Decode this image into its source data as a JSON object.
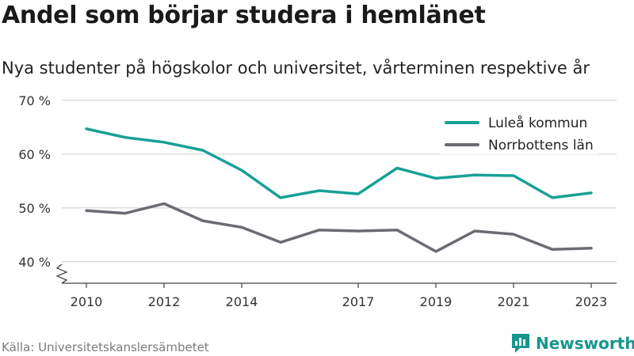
{
  "title": "Andel som börjar studera i hemlänet",
  "subtitle": "Nya studenter på högskolor och universitet, vårterminen respektive år",
  "source": "Källa: Universitetskanslersämbetet",
  "brand": {
    "name": "Newsworthy",
    "icon": "newsworthy-logo-icon",
    "color": "#17958e"
  },
  "chart_data": {
    "type": "line",
    "x": [
      2010,
      2011,
      2012,
      2013,
      2014,
      2015,
      2016,
      2017,
      2018,
      2019,
      2020,
      2021,
      2022,
      2023
    ],
    "xticks": [
      "2010",
      "2012",
      "2014",
      "2017",
      "2019",
      "2021",
      "2023"
    ],
    "xtick_values": [
      2010,
      2012,
      2014,
      2017,
      2019,
      2021,
      2023
    ],
    "yticks": [
      "40 %",
      "50 %",
      "60 %",
      "70 %"
    ],
    "ytick_values": [
      40,
      50,
      60,
      70
    ],
    "ylim": [
      36,
      71
    ],
    "grid": true,
    "legend_position": "top-right",
    "series": [
      {
        "name": "Luleå kommun",
        "color": "#17a096",
        "values": [
          64.7,
          63.1,
          62.2,
          60.7,
          57.0,
          51.9,
          53.2,
          52.6,
          57.4,
          55.5,
          56.1,
          56.0,
          51.9,
          52.8
        ]
      },
      {
        "name": "Norrbottens län",
        "color": "#6b6b73",
        "values": [
          49.5,
          49.0,
          50.8,
          47.6,
          46.4,
          43.6,
          45.9,
          45.7,
          45.9,
          41.9,
          45.7,
          45.1,
          42.3,
          42.5
        ]
      }
    ]
  }
}
